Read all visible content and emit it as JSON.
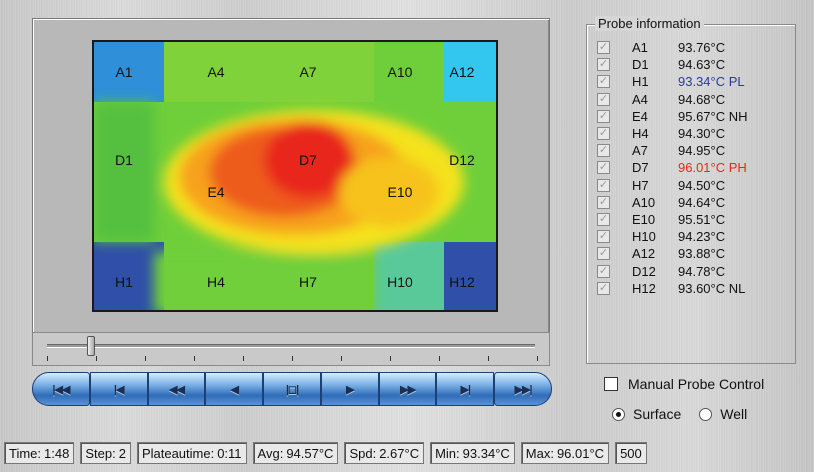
{
  "heatmap": {
    "wells": [
      {
        "label": "A1"
      },
      {
        "label": "A4"
      },
      {
        "label": "A7"
      },
      {
        "label": "A10"
      },
      {
        "label": "A12"
      },
      {
        "label": "D1"
      },
      {
        "label": "D7"
      },
      {
        "label": "D12"
      },
      {
        "label": "E4"
      },
      {
        "label": "E10"
      },
      {
        "label": "H1"
      },
      {
        "label": "H4"
      },
      {
        "label": "H7"
      },
      {
        "label": "H10"
      },
      {
        "label": "H12"
      }
    ]
  },
  "slider": {
    "position_fraction": 0.09
  },
  "transport": {
    "buttons": [
      {
        "label": "|◀◀"
      },
      {
        "label": "|◀"
      },
      {
        "label": "◀◀"
      },
      {
        "label": "◀"
      },
      {
        "label": "|◻|"
      },
      {
        "label": "▶"
      },
      {
        "label": "▶▶"
      },
      {
        "label": "▶|"
      },
      {
        "label": "▶▶|"
      }
    ]
  },
  "probe_info": {
    "title": "Probe information",
    "probes": [
      {
        "name": "A1",
        "value": "93.76°C",
        "flag": ""
      },
      {
        "name": "D1",
        "value": "94.63°C",
        "flag": ""
      },
      {
        "name": "H1",
        "value": "93.34°C PL",
        "flag": "pl"
      },
      {
        "name": "A4",
        "value": "94.68°C",
        "flag": ""
      },
      {
        "name": "E4",
        "value": "95.67°C NH",
        "flag": ""
      },
      {
        "name": "H4",
        "value": "94.30°C",
        "flag": ""
      },
      {
        "name": "A7",
        "value": "94.95°C",
        "flag": ""
      },
      {
        "name": "D7",
        "value": "96.01°C PH",
        "flag": "ph"
      },
      {
        "name": "H7",
        "value": "94.50°C",
        "flag": ""
      },
      {
        "name": "A10",
        "value": "94.64°C",
        "flag": ""
      },
      {
        "name": "E10",
        "value": "95.51°C",
        "flag": ""
      },
      {
        "name": "H10",
        "value": "94.23°C",
        "flag": ""
      },
      {
        "name": "A12",
        "value": "93.88°C",
        "flag": ""
      },
      {
        "name": "D12",
        "value": "94.78°C",
        "flag": ""
      },
      {
        "name": "H12",
        "value": "93.60°C NL",
        "flag": ""
      }
    ]
  },
  "controls": {
    "manual_probe_label": "Manual Probe Control",
    "surface_label": "Surface",
    "well_label": "Well",
    "selected_mode": "Surface"
  },
  "status": {
    "time_label": "Time:",
    "time_value": "1:48",
    "step_label": "Step:",
    "step_value": "2",
    "plateau_label": "Plateautime:",
    "plateau_value": "0:11",
    "avg_label": "Avg:",
    "avg_value": "94.57°C",
    "spd_label": "Spd:",
    "spd_value": "2.67°C",
    "min_label": "Min:",
    "min_value": "93.34°C",
    "max_label": "Max:",
    "max_value": "96.01°C",
    "extra_value": "500"
  },
  "colors": {
    "hot": "#e8261c",
    "warm": "#f7a21a",
    "mid": "#f4e21a",
    "cool": "#6fcf3a",
    "cold": "#33aee6",
    "coldest": "#2f4fa8",
    "pl_text": "#2a3a9c",
    "ph_text": "#e8261c"
  }
}
